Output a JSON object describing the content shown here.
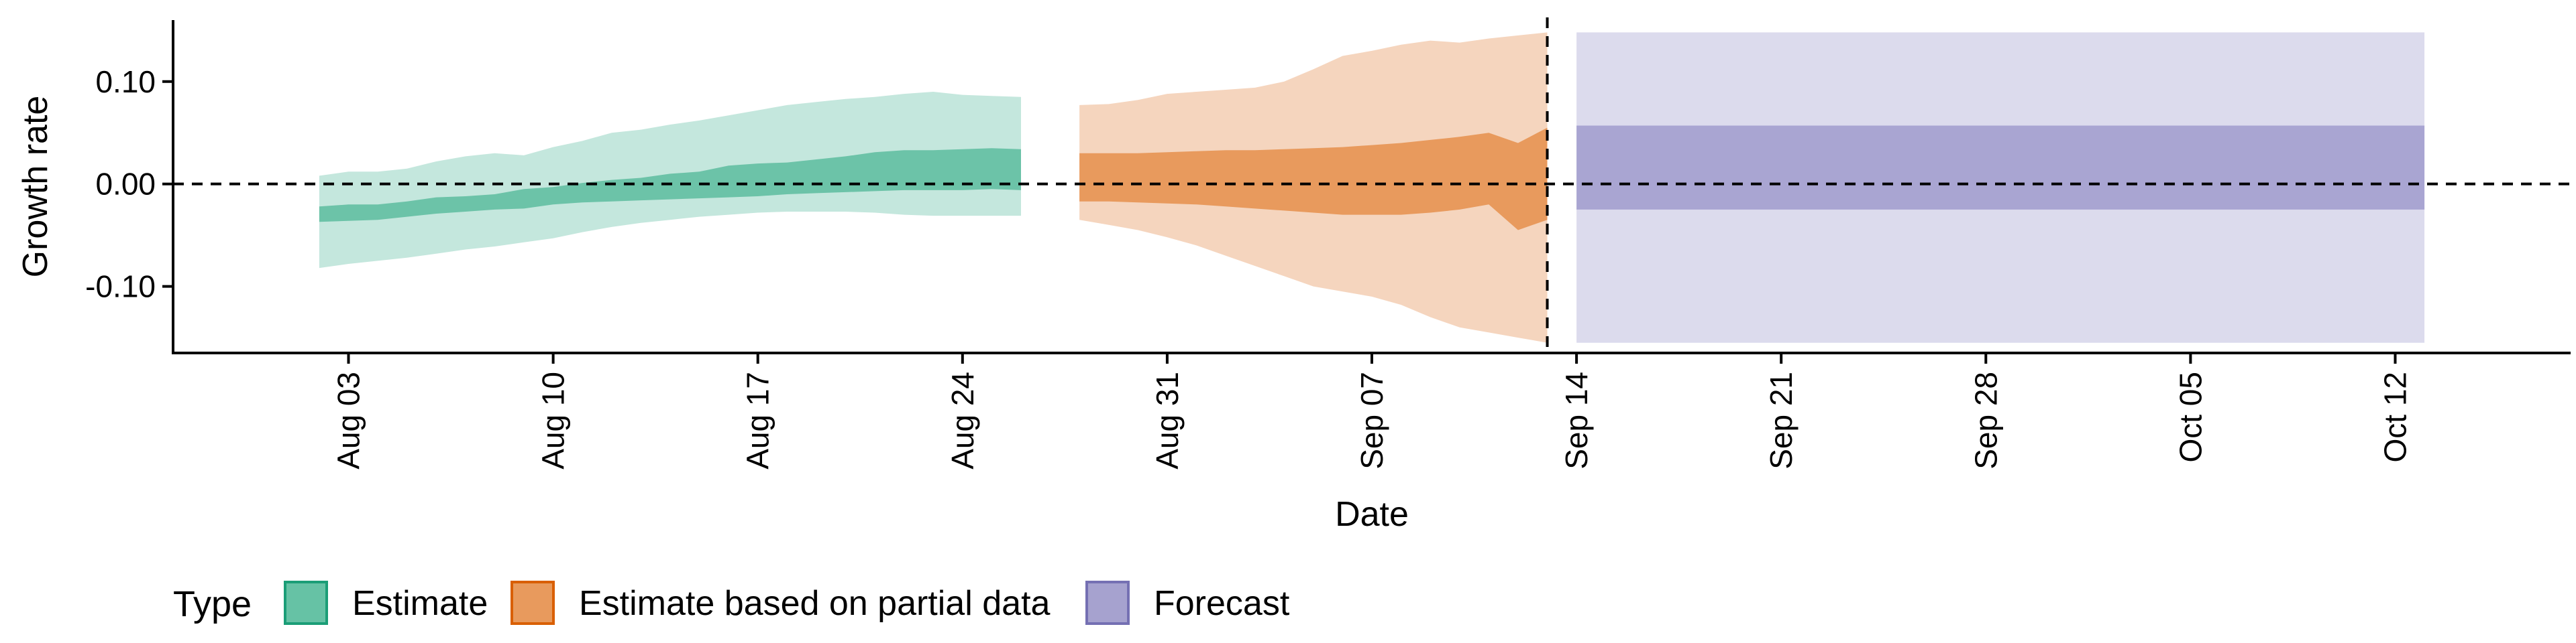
{
  "chart_data": {
    "type": "area",
    "title": "",
    "xlabel": "Date",
    "ylabel": "Growth rate",
    "x_scale": "date",
    "xlim": [
      "2021-07-28",
      "2021-10-18"
    ],
    "ylim": [
      -0.165,
      0.16
    ],
    "x_ticks": [
      {
        "date": "2021-08-03",
        "label": "Aug 03"
      },
      {
        "date": "2021-08-10",
        "label": "Aug 10"
      },
      {
        "date": "2021-08-17",
        "label": "Aug 17"
      },
      {
        "date": "2021-08-24",
        "label": "Aug 24"
      },
      {
        "date": "2021-08-31",
        "label": "Aug 31"
      },
      {
        "date": "2021-09-07",
        "label": "Sep 07"
      },
      {
        "date": "2021-09-14",
        "label": "Sep 14"
      },
      {
        "date": "2021-09-21",
        "label": "Sep 21"
      },
      {
        "date": "2021-09-28",
        "label": "Sep 28"
      },
      {
        "date": "2021-10-05",
        "label": "Oct 05"
      },
      {
        "date": "2021-10-12",
        "label": "Oct 12"
      }
    ],
    "y_ticks": [
      {
        "value": 0.1,
        "label": "0.10"
      },
      {
        "value": 0.0,
        "label": "0.00"
      },
      {
        "value": -0.1,
        "label": "-0.10"
      }
    ],
    "hline": {
      "value": 0,
      "style": "dashed"
    },
    "vline": {
      "date": "2021-09-13",
      "style": "dashed"
    },
    "legend": {
      "title": "Type",
      "position": "bottom-left",
      "items": [
        {
          "label": "Estimate",
          "fill": "#66c2a5",
          "border": "#1b9e77"
        },
        {
          "label": "Estimate based on partial data",
          "fill": "#e89a5d",
          "border": "#d95f02"
        },
        {
          "label": "Forecast",
          "fill": "#a6a2cf",
          "border": "#7570b3"
        }
      ]
    },
    "series": [
      {
        "name": "Estimate",
        "inner_color": "#6cc3a8",
        "outer_color": "#c4e7dd",
        "x": [
          "2021-08-02",
          "2021-08-03",
          "2021-08-04",
          "2021-08-05",
          "2021-08-06",
          "2021-08-07",
          "2021-08-08",
          "2021-08-09",
          "2021-08-10",
          "2021-08-11",
          "2021-08-12",
          "2021-08-13",
          "2021-08-14",
          "2021-08-15",
          "2021-08-16",
          "2021-08-17",
          "2021-08-18",
          "2021-08-19",
          "2021-08-20",
          "2021-08-21",
          "2021-08-22",
          "2021-08-23",
          "2021-08-24",
          "2021-08-25",
          "2021-08-26"
        ],
        "outer_upper": [
          0.008,
          0.012,
          0.012,
          0.015,
          0.022,
          0.027,
          0.03,
          0.028,
          0.036,
          0.042,
          0.05,
          0.053,
          0.058,
          0.062,
          0.067,
          0.072,
          0.077,
          0.08,
          0.083,
          0.085,
          0.088,
          0.09,
          0.087,
          0.086,
          0.085
        ],
        "inner_upper": [
          -0.022,
          -0.02,
          -0.02,
          -0.017,
          -0.013,
          -0.012,
          -0.01,
          -0.005,
          -0.003,
          0.001,
          0.004,
          0.006,
          0.01,
          0.012,
          0.018,
          0.02,
          0.021,
          0.024,
          0.027,
          0.031,
          0.033,
          0.033,
          0.034,
          0.035,
          0.034
        ],
        "inner_lower": [
          -0.037,
          -0.036,
          -0.035,
          -0.032,
          -0.029,
          -0.027,
          -0.025,
          -0.024,
          -0.02,
          -0.018,
          -0.017,
          -0.016,
          -0.015,
          -0.014,
          -0.013,
          -0.012,
          -0.01,
          -0.009,
          -0.008,
          -0.007,
          -0.006,
          -0.006,
          -0.006,
          -0.005,
          -0.006
        ],
        "outer_lower": [
          -0.082,
          -0.078,
          -0.075,
          -0.072,
          -0.068,
          -0.064,
          -0.061,
          -0.057,
          -0.053,
          -0.047,
          -0.042,
          -0.038,
          -0.035,
          -0.032,
          -0.03,
          -0.028,
          -0.027,
          -0.027,
          -0.027,
          -0.028,
          -0.03,
          -0.031,
          -0.031,
          -0.031,
          -0.031
        ]
      },
      {
        "name": "Estimate based on partial data",
        "inner_color": "#e89a5d",
        "outer_color": "#f5d5be",
        "x": [
          "2021-08-28",
          "2021-08-29",
          "2021-08-30",
          "2021-08-31",
          "2021-09-01",
          "2021-09-02",
          "2021-09-03",
          "2021-09-04",
          "2021-09-05",
          "2021-09-06",
          "2021-09-07",
          "2021-09-08",
          "2021-09-09",
          "2021-09-10",
          "2021-09-11",
          "2021-09-12",
          "2021-09-13"
        ],
        "outer_upper": [
          0.077,
          0.078,
          0.082,
          0.088,
          0.09,
          0.092,
          0.094,
          0.1,
          0.112,
          0.125,
          0.13,
          0.136,
          0.14,
          0.138,
          0.142,
          0.145,
          0.148
        ],
        "inner_upper": [
          0.03,
          0.03,
          0.03,
          0.031,
          0.032,
          0.033,
          0.033,
          0.034,
          0.035,
          0.036,
          0.038,
          0.04,
          0.043,
          0.046,
          0.05,
          0.04,
          0.055
        ],
        "inner_lower": [
          -0.017,
          -0.017,
          -0.018,
          -0.019,
          -0.02,
          -0.022,
          -0.024,
          -0.026,
          -0.028,
          -0.03,
          -0.03,
          -0.03,
          -0.028,
          -0.025,
          -0.02,
          -0.045,
          -0.035
        ],
        "outer_lower": [
          -0.035,
          -0.04,
          -0.045,
          -0.052,
          -0.06,
          -0.07,
          -0.08,
          -0.09,
          -0.1,
          -0.105,
          -0.11,
          -0.118,
          -0.13,
          -0.14,
          -0.145,
          -0.15,
          -0.155
        ]
      },
      {
        "name": "Forecast",
        "inner_color": "#a9a5d2",
        "outer_color": "#dcdbed",
        "x": [
          "2021-09-14",
          "2021-10-13"
        ],
        "outer_upper": [
          0.148,
          0.148
        ],
        "inner_upper": [
          0.057,
          0.057
        ],
        "inner_lower": [
          -0.025,
          -0.025
        ],
        "outer_lower": [
          -0.155,
          -0.155
        ]
      }
    ]
  }
}
